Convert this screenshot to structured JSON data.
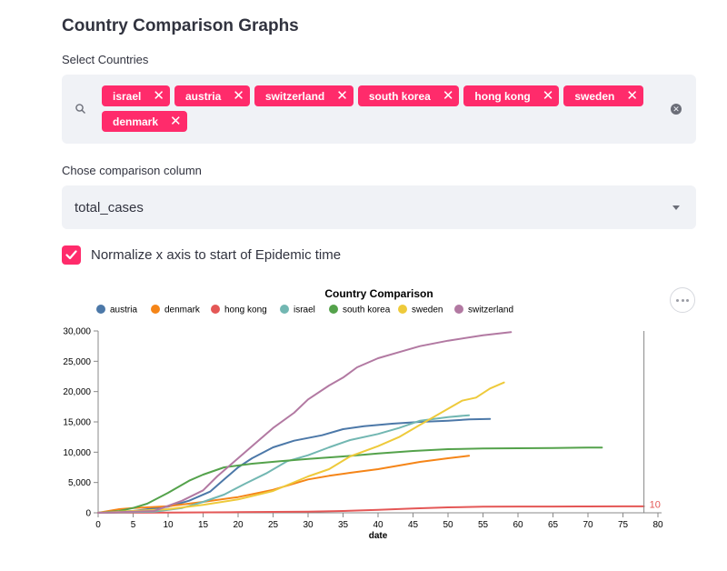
{
  "header": {
    "title": "Country Comparison Graphs"
  },
  "countries": {
    "label": "Select Countries",
    "selected": [
      "israel",
      "austria",
      "switzerland",
      "south korea",
      "hong kong",
      "sweden",
      "denmark"
    ],
    "remove_glyph": "✕",
    "clear_glyph": "✕"
  },
  "column": {
    "label": "Chose comparison column",
    "value": "total_cases"
  },
  "normalize": {
    "label": "Normalize x axis to start of Epidemic time",
    "checked": true
  },
  "accent_color": "#ff2b6b",
  "chart_data": {
    "type": "line",
    "title": "Country Comparison",
    "xlabel": "date",
    "ylabel": "",
    "xlim": [
      0,
      80
    ],
    "ylim": [
      0,
      30000
    ],
    "x_ticks": [
      0,
      5,
      10,
      15,
      20,
      25,
      30,
      35,
      40,
      45,
      50,
      55,
      60,
      65,
      70,
      75,
      80
    ],
    "y_ticks": [
      0,
      5000,
      10000,
      15000,
      20000,
      25000,
      30000
    ],
    "y_tick_labels": [
      "0",
      "5,000",
      "10,000",
      "15,000",
      "20,000",
      "25,000",
      "30,000"
    ],
    "grid": false,
    "legend": "top",
    "rule": {
      "x": 78,
      "label": "10"
    },
    "series": [
      {
        "name": "austria",
        "color": "#4c78a8",
        "x": [
          0,
          5,
          10,
          13,
          16,
          18,
          20,
          22,
          25,
          28,
          32,
          35,
          38,
          42,
          46,
          50,
          53,
          56
        ],
        "y": [
          0,
          300,
          1000,
          2000,
          3500,
          5500,
          7500,
          9000,
          10800,
          11900,
          12800,
          13800,
          14300,
          14700,
          15000,
          15200,
          15400,
          15500
        ]
      },
      {
        "name": "denmark",
        "color": "#f58518",
        "x": [
          0,
          3,
          5,
          7,
          10,
          15,
          20,
          25,
          30,
          33,
          36,
          40,
          43,
          46,
          50,
          53
        ],
        "y": [
          0,
          600,
          800,
          900,
          1100,
          1800,
          2600,
          3800,
          5500,
          6100,
          6600,
          7200,
          7800,
          8400,
          9000,
          9400
        ]
      },
      {
        "name": "hong kong",
        "color": "#e45756",
        "x": [
          0,
          10,
          20,
          30,
          35,
          40,
          45,
          50,
          55,
          60,
          65,
          70,
          75,
          78
        ],
        "y": [
          0,
          50,
          100,
          200,
          300,
          500,
          700,
          900,
          1000,
          1030,
          1040,
          1050,
          1060,
          1070
        ]
      },
      {
        "name": "israel",
        "color": "#72b7b2",
        "x": [
          0,
          8,
          12,
          15,
          18,
          21,
          24,
          27,
          30,
          33,
          36,
          40,
          43,
          46,
          50,
          53
        ],
        "y": [
          0,
          200,
          800,
          1800,
          3000,
          4800,
          6500,
          8500,
          9500,
          10800,
          12000,
          13000,
          14000,
          15200,
          15800,
          16100
        ]
      },
      {
        "name": "south korea",
        "color": "#54a24b",
        "x": [
          0,
          3,
          5,
          7,
          10,
          13,
          15,
          18,
          22,
          26,
          30,
          35,
          40,
          45,
          50,
          55,
          60,
          65,
          70,
          72
        ],
        "y": [
          0,
          300,
          800,
          1500,
          3300,
          5300,
          6300,
          7500,
          8100,
          8500,
          8900,
          9300,
          9800,
          10200,
          10500,
          10600,
          10650,
          10700,
          10750,
          10760
        ]
      },
      {
        "name": "sweden",
        "color": "#eeca3b",
        "x": [
          0,
          10,
          15,
          20,
          25,
          30,
          33,
          36,
          40,
          43,
          46,
          49,
          52,
          54,
          56,
          58
        ],
        "y": [
          0,
          600,
          1300,
          2200,
          3600,
          6000,
          7200,
          9300,
          11000,
          12500,
          14500,
          16500,
          18500,
          19000,
          20500,
          21500
        ]
      },
      {
        "name": "switzerland",
        "color": "#b279a2",
        "x": [
          0,
          8,
          12,
          15,
          17,
          20,
          23,
          25,
          28,
          30,
          33,
          35,
          37,
          40,
          43,
          46,
          50,
          55,
          59
        ],
        "y": [
          0,
          300,
          2000,
          3700,
          6000,
          9000,
          12000,
          14000,
          16500,
          18700,
          21000,
          22300,
          24000,
          25500,
          26500,
          27500,
          28400,
          29300,
          29800
        ]
      }
    ]
  }
}
